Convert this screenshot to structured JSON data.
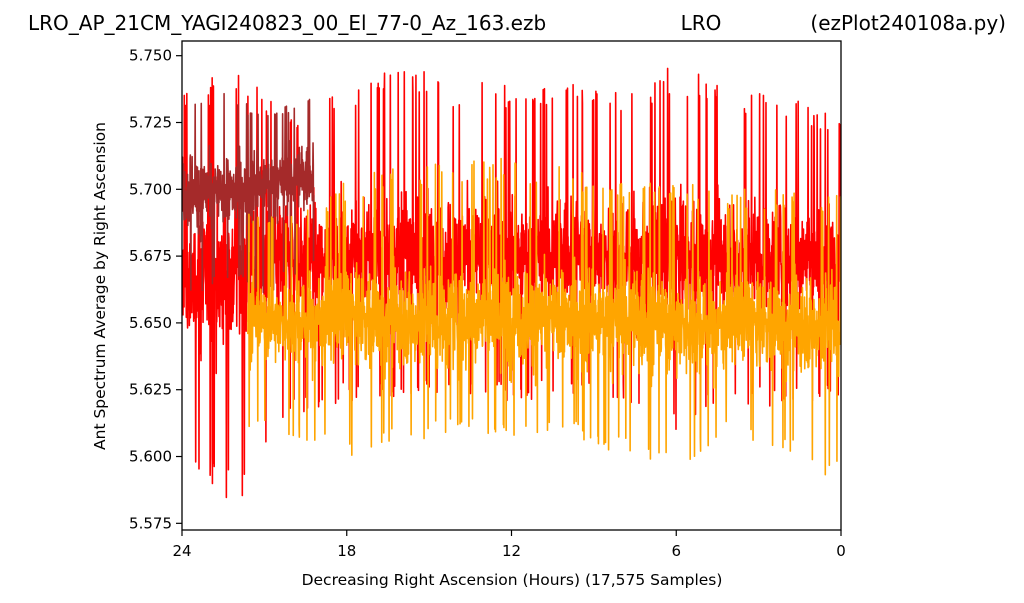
{
  "header": {
    "filename": "LRO_AP_21CM_YAGI240823_00_El_77-0_Az_163.ezb",
    "station": "LRO",
    "program": "(ezPlot240108a.py)"
  },
  "chart_data": {
    "type": "line",
    "title": "LRO_AP_21CM_YAGI240823_00_El_77-0_Az_163.ezb",
    "xlabel": "Decreasing Right Ascension (Hours) (17,575 Samples)",
    "ylabel": "Ant Spectrum Average by Right Ascension",
    "xlim": [
      24,
      0
    ],
    "ylim": [
      5.5725,
      5.7555
    ],
    "x_ticks": [
      24,
      18,
      12,
      6,
      0
    ],
    "x_tick_labels": [
      "24",
      "18",
      "12",
      "6",
      "0"
    ],
    "y_ticks": [
      5.575,
      5.6,
      5.625,
      5.65,
      5.675,
      5.7,
      5.725,
      5.75
    ],
    "y_tick_labels": [
      "5.575",
      "5.600",
      "5.625",
      "5.650",
      "5.675",
      "5.700",
      "5.725",
      "5.750"
    ],
    "grid": false,
    "legend": "none",
    "samples": 17575,
    "series": [
      {
        "color": "#ff0000",
        "x_range": [
          24,
          0
        ],
        "envelope": {
          "x": [
            24,
            22,
            20,
            18,
            16,
            14,
            12,
            10,
            8,
            6,
            4,
            2,
            0
          ],
          "min": [
            5.6,
            5.58,
            5.612,
            5.62,
            5.622,
            5.62,
            5.62,
            5.622,
            5.622,
            5.61,
            5.62,
            5.618,
            5.62
          ],
          "max": [
            5.738,
            5.745,
            5.73,
            5.738,
            5.747,
            5.74,
            5.74,
            5.742,
            5.736,
            5.747,
            5.738,
            5.735,
            5.726
          ],
          "center": [
            5.665,
            5.67,
            5.675,
            5.675,
            5.676,
            5.675,
            5.675,
            5.675,
            5.675,
            5.675,
            5.675,
            5.675,
            5.672
          ]
        }
      },
      {
        "color": "#a52a2a",
        "x_range": [
          24,
          19.2
        ],
        "envelope": {
          "x": [
            24,
            22.5,
            21,
            19.2
          ],
          "min": [
            5.655,
            5.665,
            5.66,
            5.67
          ],
          "max": [
            5.738,
            5.736,
            5.73,
            5.736
          ],
          "center": [
            5.7,
            5.698,
            5.702,
            5.705
          ]
        }
      },
      {
        "color": "#ffa500",
        "x_range": [
          21.6,
          0
        ],
        "envelope": {
          "x": [
            21.6,
            20,
            18,
            16,
            14,
            12,
            10,
            8,
            6,
            4,
            2,
            0
          ],
          "min": [
            5.61,
            5.608,
            5.6,
            5.604,
            5.61,
            5.605,
            5.608,
            5.6,
            5.595,
            5.61,
            5.6,
            5.59
          ],
          "max": [
            5.692,
            5.69,
            5.703,
            5.71,
            5.71,
            5.712,
            5.708,
            5.705,
            5.703,
            5.7,
            5.7,
            5.698
          ],
          "center": [
            5.651,
            5.651,
            5.652,
            5.652,
            5.652,
            5.652,
            5.651,
            5.651,
            5.65,
            5.65,
            5.65,
            5.65
          ]
        }
      }
    ]
  }
}
